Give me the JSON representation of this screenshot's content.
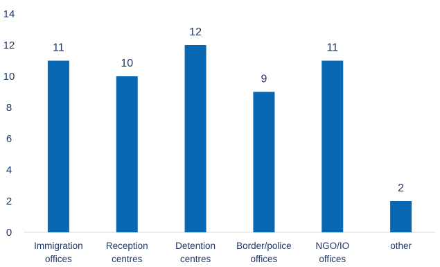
{
  "colors": {
    "bar": "#0868b4",
    "axis": "#d9d9d9",
    "text": "#1f3864"
  },
  "chart_data": {
    "type": "bar",
    "categories": [
      [
        "Immigration",
        "offices"
      ],
      [
        "Reception",
        "centres"
      ],
      [
        "Detention",
        "centres"
      ],
      [
        "Border/police",
        "offices"
      ],
      [
        "NGO/IO",
        "offices"
      ],
      [
        "other"
      ]
    ],
    "values": [
      11,
      10,
      12,
      9,
      11,
      2
    ],
    "ylim": [
      0,
      14
    ],
    "yticks": [
      0,
      2,
      4,
      6,
      8,
      10,
      12,
      14
    ],
    "data_labels": true,
    "grid": false,
    "legend": "none",
    "title": "",
    "xlabel": "",
    "ylabel": ""
  }
}
